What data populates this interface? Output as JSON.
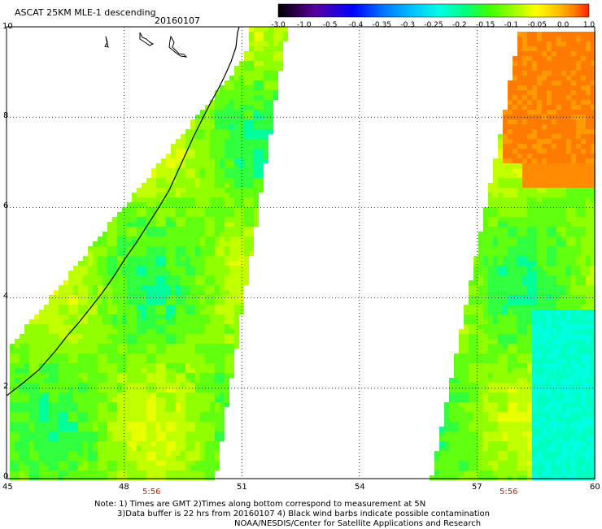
{
  "header": {
    "title": "ASCAT 25KM MLE-1 descending",
    "date": "20160107"
  },
  "colorbar": {
    "labels": [
      "-3.0",
      "-1.0",
      "-0.5",
      "-0.4",
      "-0.35",
      "-0.3",
      "-0.25",
      "-0.2",
      "-0.15",
      "-0.1",
      "-0.05",
      "0.0",
      "1.0"
    ],
    "colors": [
      "#000000",
      "#5a00a0",
      "#0000ff",
      "#0078ff",
      "#00c8ff",
      "#00ffe0",
      "#00ff80",
      "#40ff00",
      "#a0ff00",
      "#ffff00",
      "#ffc000",
      "#ff8000",
      "#ff2000"
    ]
  },
  "map": {
    "lon_ticks": [
      "45",
      "48",
      "51",
      "54",
      "57",
      "60"
    ],
    "lat_ticks": [
      "0",
      "2",
      "4",
      "6",
      "8",
      "10"
    ],
    "lon_range": [
      45,
      60
    ],
    "lat_range": [
      0,
      10
    ],
    "pass_times": [
      "5:56",
      "5:56"
    ]
  },
  "notes": [
    "Note: 1) Times are GMT 2)Times along bottom correspond to measurement at 5N",
    "3)Data buffer is 22 hrs from 20160107 4) Black wind barbs indicate possible contamination",
    "NOAA/NESDIS/Center for Satellite Applications and Research"
  ]
}
